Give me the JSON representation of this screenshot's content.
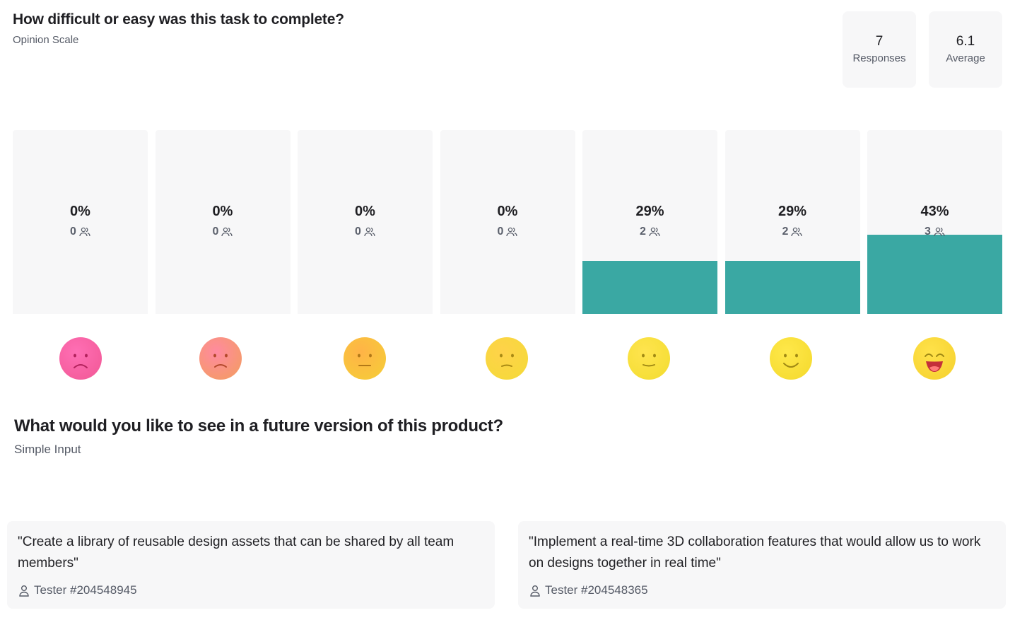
{
  "question1": {
    "title": "How difficult or easy was this task to complete?",
    "type_label": "Opinion Scale",
    "stats": {
      "responses_value": "7",
      "responses_label": "Responses",
      "average_value": "6.1",
      "average_label": "Average"
    },
    "bars": [
      {
        "percent_label": "0%",
        "count": "0",
        "fraction": 0
      },
      {
        "percent_label": "0%",
        "count": "0",
        "fraction": 0
      },
      {
        "percent_label": "0%",
        "count": "0",
        "fraction": 0
      },
      {
        "percent_label": "0%",
        "count": "0",
        "fraction": 0
      },
      {
        "percent_label": "29%",
        "count": "2",
        "fraction": 0.29
      },
      {
        "percent_label": "29%",
        "count": "2",
        "fraction": 0.29
      },
      {
        "percent_label": "43%",
        "count": "3",
        "fraction": 0.43
      }
    ],
    "emojis": [
      "very-sad-face-icon",
      "sad-face-icon",
      "neutral-face-icon",
      "slightly-unhappy-face-icon",
      "slightly-smiling-face-icon",
      "smiling-face-icon",
      "grinning-face-icon"
    ],
    "colors": {
      "bar_fill": "#3aa8a3",
      "bar_bg": "#f7f7f8"
    }
  },
  "question2": {
    "title": "What would you like to see in a future version of this product?",
    "type_label": "Simple Input",
    "answers": [
      {
        "text": "\"Create a library of reusable design assets that can be shared by all team members\"",
        "tester": "Tester #204548945"
      },
      {
        "text": "\"Implement a real-time 3D collaboration features that would allow us to work on designs together in real time\"",
        "tester": "Tester #204548365"
      }
    ]
  }
}
